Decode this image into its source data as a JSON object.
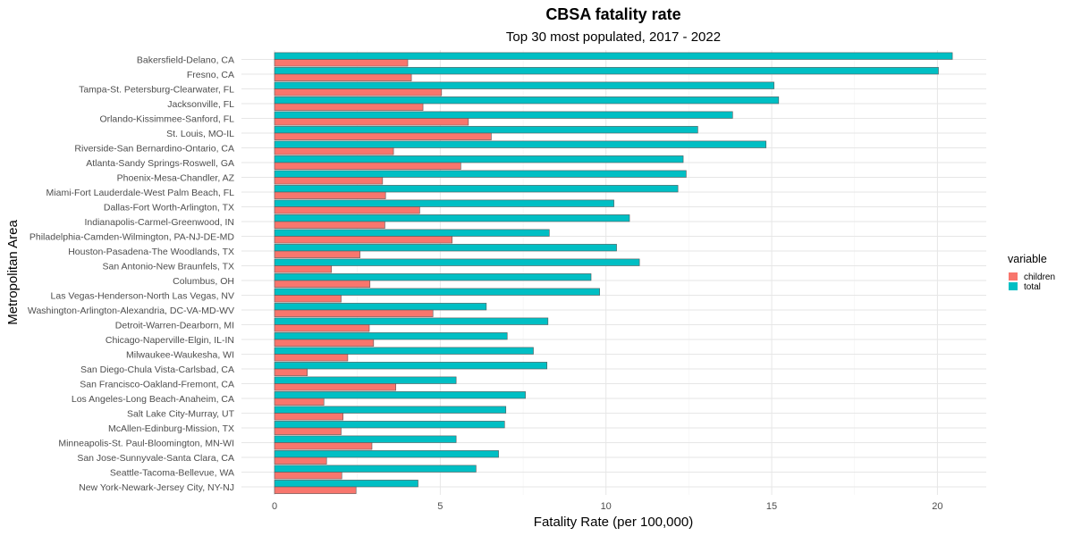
{
  "chart_data": {
    "type": "bar",
    "orientation": "horizontal",
    "title": "CBSA fatality rate",
    "subtitle": "Top 30 most populated, 2017 - 2022",
    "xlabel": "Fatality Rate (per 100,000)",
    "ylabel": "Metropolitan Area",
    "xlim": [
      -0.9,
      21.5
    ],
    "xticks": [
      0,
      5,
      10,
      15,
      20
    ],
    "grid": true,
    "legend": {
      "title": "variable",
      "position": "right"
    },
    "categories": [
      "Bakersfield-Delano, CA",
      "Fresno, CA",
      "Tampa-St. Petersburg-Clearwater, FL",
      "Jacksonville, FL",
      "Orlando-Kissimmee-Sanford, FL",
      "St. Louis, MO-IL",
      "Riverside-San Bernardino-Ontario, CA",
      "Atlanta-Sandy Springs-Roswell, GA",
      "Phoenix-Mesa-Chandler, AZ",
      "Miami-Fort Lauderdale-West Palm Beach, FL",
      "Dallas-Fort Worth-Arlington, TX",
      "Indianapolis-Carmel-Greenwood, IN",
      "Philadelphia-Camden-Wilmington, PA-NJ-DE-MD",
      "Houston-Pasadena-The Woodlands, TX",
      "San Antonio-New Braunfels, TX",
      "Columbus, OH",
      "Las Vegas-Henderson-North Las Vegas, NV",
      "Washington-Arlington-Alexandria, DC-VA-MD-WV",
      "Detroit-Warren-Dearborn, MI",
      "Chicago-Naperville-Elgin, IL-IN",
      "Milwaukee-Waukesha, WI",
      "San Diego-Chula Vista-Carlsbad, CA",
      "San Francisco-Oakland-Fremont, CA",
      "Los Angeles-Long Beach-Anaheim, CA",
      "Salt Lake City-Murray, UT",
      "McAllen-Edinburg-Mission, TX",
      "Minneapolis-St. Paul-Bloomington, MN-WI",
      "San Jose-Sunnyvale-Santa Clara, CA",
      "Seattle-Tacoma-Bellevue, WA",
      "New York-Newark-Jersey City, NY-NJ"
    ],
    "series": [
      {
        "name": "children",
        "color": "#F8766D",
        "values": [
          4.02,
          4.13,
          5.04,
          4.48,
          5.85,
          6.54,
          3.59,
          5.62,
          3.26,
          3.35,
          4.38,
          3.33,
          5.36,
          2.58,
          1.72,
          2.88,
          2.01,
          4.78,
          2.86,
          2.99,
          2.21,
          0.99,
          3.66,
          1.49,
          2.07,
          2.01,
          2.94,
          1.57,
          2.03,
          2.46
        ]
      },
      {
        "name": "total",
        "color": "#00BFC4",
        "values": [
          20.45,
          20.03,
          15.07,
          15.21,
          13.82,
          12.77,
          14.83,
          12.33,
          12.42,
          12.17,
          10.24,
          10.71,
          8.29,
          10.32,
          11.01,
          9.55,
          9.81,
          6.39,
          8.25,
          7.02,
          7.81,
          8.22,
          5.48,
          7.57,
          6.98,
          6.94,
          5.48,
          6.76,
          6.08,
          4.33
        ]
      }
    ]
  }
}
